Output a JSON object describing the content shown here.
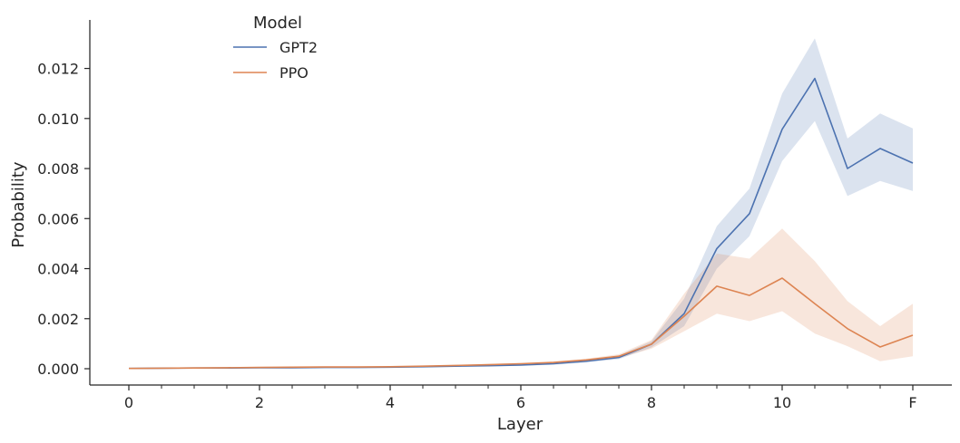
{
  "chart_data": {
    "type": "line",
    "title": "",
    "xlabel": "Layer",
    "ylabel": "Probability",
    "x": [
      0,
      0.5,
      1,
      1.5,
      2,
      2.5,
      3,
      3.5,
      4,
      4.5,
      5,
      5.5,
      6,
      6.5,
      7,
      7.5,
      8,
      8.5,
      9,
      9.5,
      10,
      10.5,
      11,
      11.5,
      12
    ],
    "xticks": [
      0,
      2,
      4,
      6,
      8,
      10,
      12
    ],
    "xtick_labels": [
      "0",
      "2",
      "4",
      "6",
      "8",
      "10",
      "F"
    ],
    "xminor_ticks": [
      0.5,
      1,
      1.5,
      2.5,
      3,
      3.5,
      4.5,
      5,
      5.5,
      6.5,
      7,
      7.5,
      8.5,
      9,
      9.5,
      10.5,
      11,
      11.5
    ],
    "yticks": [
      0.0,
      0.002,
      0.004,
      0.006,
      0.008,
      0.01,
      0.012
    ],
    "ytick_labels": [
      "0.000",
      "0.002",
      "0.004",
      "0.006",
      "0.008",
      "0.010",
      "0.012"
    ],
    "xlim": [
      -0.6,
      12.6
    ],
    "ylim": [
      -0.00065,
      0.01395
    ],
    "grid": false,
    "legend": {
      "title": "Model",
      "position": "upper left (inside, near x=2)"
    },
    "series": [
      {
        "name": "GPT2",
        "color": "#4c72b0",
        "band_color": "#4c72b0",
        "values": [
          1e-05,
          2e-05,
          3e-05,
          3e-05,
          4e-05,
          4e-05,
          5e-05,
          5e-05,
          6e-05,
          8e-05,
          0.0001,
          0.00012,
          0.00015,
          0.0002,
          0.0003,
          0.00045,
          0.00098,
          0.0022,
          0.0048,
          0.0062,
          0.00957,
          0.0116,
          0.008,
          0.0088,
          0.00822
        ],
        "ci_lower": [
          0.0,
          1e-05,
          2e-05,
          2e-05,
          3e-05,
          3e-05,
          4e-05,
          4e-05,
          5e-05,
          6e-05,
          8e-05,
          0.0001,
          0.00012,
          0.00016,
          0.00025,
          0.00038,
          0.00085,
          0.0017,
          0.004,
          0.0053,
          0.0083,
          0.0099,
          0.0069,
          0.0075,
          0.0071
        ],
        "ci_upper": [
          2e-05,
          3e-05,
          4e-05,
          4e-05,
          5e-05,
          5e-05,
          6e-05,
          6e-05,
          7e-05,
          0.0001,
          0.00012,
          0.00014,
          0.00018,
          0.00024,
          0.00035,
          0.00052,
          0.0011,
          0.0028,
          0.0057,
          0.0072,
          0.011,
          0.0132,
          0.0092,
          0.0102,
          0.0096
        ]
      },
      {
        "name": "PPO",
        "color": "#dd8452",
        "band_color": "#dd8452",
        "values": [
          1e-05,
          2e-05,
          3e-05,
          4e-05,
          5e-05,
          6e-05,
          7e-05,
          7e-05,
          8e-05,
          0.0001,
          0.00013,
          0.00016,
          0.0002,
          0.00025,
          0.00035,
          0.0005,
          0.00098,
          0.0021,
          0.0033,
          0.00293,
          0.00362,
          0.0026,
          0.0016,
          0.00087,
          0.00134
        ],
        "ci_lower": [
          0.0,
          1e-05,
          2e-05,
          3e-05,
          4e-05,
          5e-05,
          6e-05,
          6e-05,
          7e-05,
          8e-05,
          0.00011,
          0.00013,
          0.00017,
          0.00021,
          0.0003,
          0.00042,
          0.0008,
          0.0015,
          0.0022,
          0.0019,
          0.0023,
          0.0014,
          0.0009,
          0.0003,
          0.0005
        ],
        "ci_upper": [
          2e-05,
          3e-05,
          4e-05,
          5e-05,
          6e-05,
          7e-05,
          8e-05,
          8e-05,
          9e-05,
          0.00012,
          0.00015,
          0.00019,
          0.00023,
          0.00029,
          0.0004,
          0.00058,
          0.00115,
          0.003,
          0.0046,
          0.0044,
          0.0056,
          0.0043,
          0.0027,
          0.0017,
          0.0026
        ]
      }
    ]
  },
  "plot": {
    "x_axis_label": "Layer",
    "y_axis_label": "Probability",
    "legend_title": "Model",
    "legend_items": [
      {
        "label": "GPT2",
        "color": "#4c72b0"
      },
      {
        "label": "PPO",
        "color": "#dd8452"
      }
    ]
  }
}
